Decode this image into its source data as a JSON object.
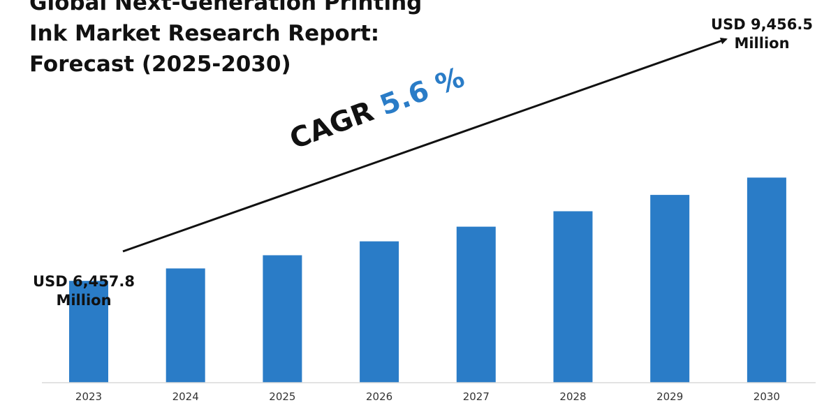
{
  "title_lines": [
    "Global Next-Generation Printing",
    "Ink Market Research Report:",
    "Forecast (2025-2030)"
  ],
  "colors": {
    "bar": "#2A7CC7",
    "text": "#111111",
    "axis": "#d9d9d9",
    "tick_label": "#333333"
  },
  "chart_data": {
    "type": "bar",
    "categories": [
      "2023",
      "2024",
      "2025",
      "2026",
      "2027",
      "2028",
      "2029",
      "2030"
    ],
    "values": [
      6457.8,
      6819.4,
      7201.3,
      7604.6,
      8030.5,
      8480.2,
      8955.0,
      9456.5
    ],
    "unit": "USD Million",
    "grid": false,
    "legend": "none"
  },
  "annotations": {
    "start_value": [
      "USD 6,457.8",
      "Million"
    ],
    "end_value": [
      "USD 9,456.5",
      "Million"
    ],
    "cagr_label": "CAGR",
    "cagr_value": "5.6 %"
  }
}
